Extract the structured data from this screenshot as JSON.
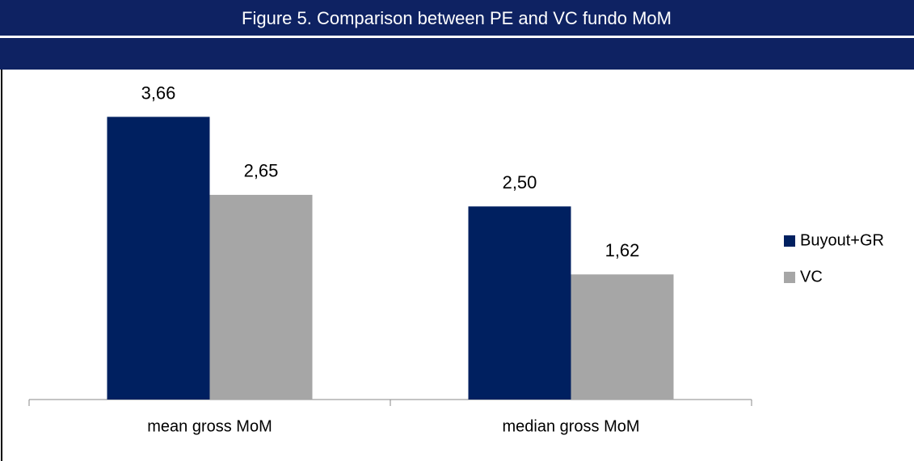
{
  "chart_data": {
    "type": "bar",
    "title": "Figure 5. Comparison between PE and VC fundo MoM",
    "categories": [
      "mean gross MoM",
      "median gross MoM"
    ],
    "series": [
      {
        "name": "Buyout+GR",
        "color": "#002060",
        "values": [
          3.66,
          2.5
        ],
        "value_labels": [
          "3,66",
          "2,50"
        ]
      },
      {
        "name": "VC",
        "color": "#a6a6a6",
        "values": [
          2.65,
          1.62
        ],
        "value_labels": [
          "2,65",
          "1,62"
        ]
      }
    ],
    "ylim": [
      0,
      4
    ],
    "legend": "right"
  }
}
